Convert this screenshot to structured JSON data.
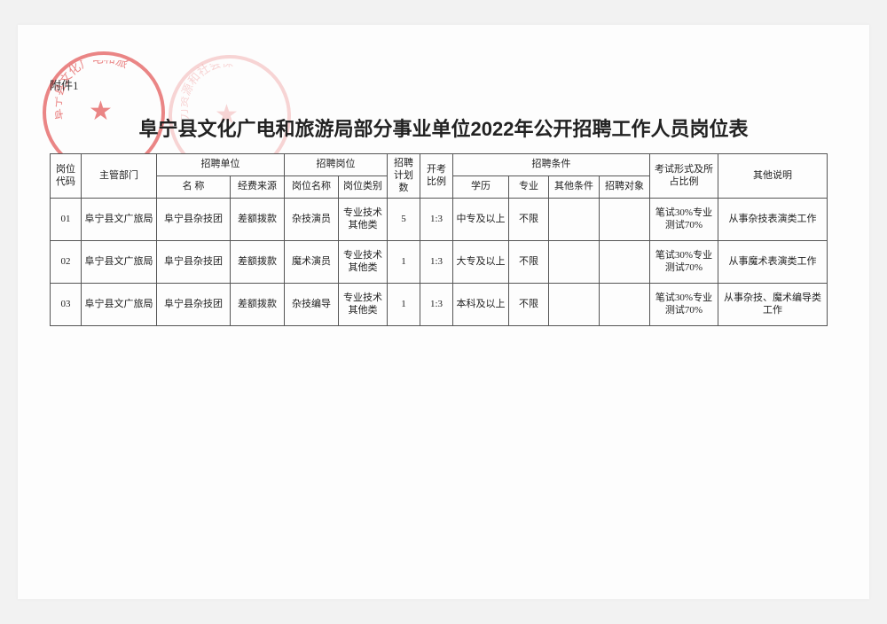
{
  "attachment_label": "附件1",
  "title": "阜宁县文化广电和旅游局部分事业单位2022年公开招聘工作人员岗位表",
  "headers": {
    "code": "岗位代码",
    "dept": "主管部门",
    "unit_group": "招聘单位",
    "unit_name": "名  称",
    "unit_fund": "经费来源",
    "pos_group": "招聘岗位",
    "pos_name": "岗位名称",
    "pos_type": "岗位类别",
    "plan": "招聘计划数",
    "ratio": "开考比例",
    "cond_group": "招聘条件",
    "edu": "学历",
    "major": "专业",
    "other_cond": "其他条件",
    "target": "招聘对象",
    "exam": "考试形式及所占比例",
    "note": "其他说明"
  },
  "rows": [
    {
      "code": "01",
      "dept": "阜宁县文广旅局",
      "unit": "阜宁县杂技团",
      "fund": "差额拨款",
      "pos_name": "杂技演员",
      "pos_type": "专业技术其他类",
      "plan": "5",
      "ratio": "1:3",
      "edu": "中专及以上",
      "major": "不限",
      "other_cond": "",
      "target": "",
      "exam": "笔试30%专业测试70%",
      "note": "从事杂技表演类工作"
    },
    {
      "code": "02",
      "dept": "阜宁县文广旅局",
      "unit": "阜宁县杂技团",
      "fund": "差额拨款",
      "pos_name": "魔术演员",
      "pos_type": "专业技术其他类",
      "plan": "1",
      "ratio": "1:3",
      "edu": "大专及以上",
      "major": "不限",
      "other_cond": "",
      "target": "",
      "exam": "笔试30%专业测试70%",
      "note": "从事魔术表演类工作"
    },
    {
      "code": "03",
      "dept": "阜宁县文广旅局",
      "unit": "阜宁县杂技团",
      "fund": "差额拨款",
      "pos_name": "杂技编导",
      "pos_type": "专业技术其他类",
      "plan": "1",
      "ratio": "1:3",
      "edu": "本科及以上",
      "major": "不限",
      "other_cond": "",
      "target": "",
      "exam": "笔试30%专业测试70%",
      "note": "从事杂技、魔术编导类工作"
    }
  ]
}
